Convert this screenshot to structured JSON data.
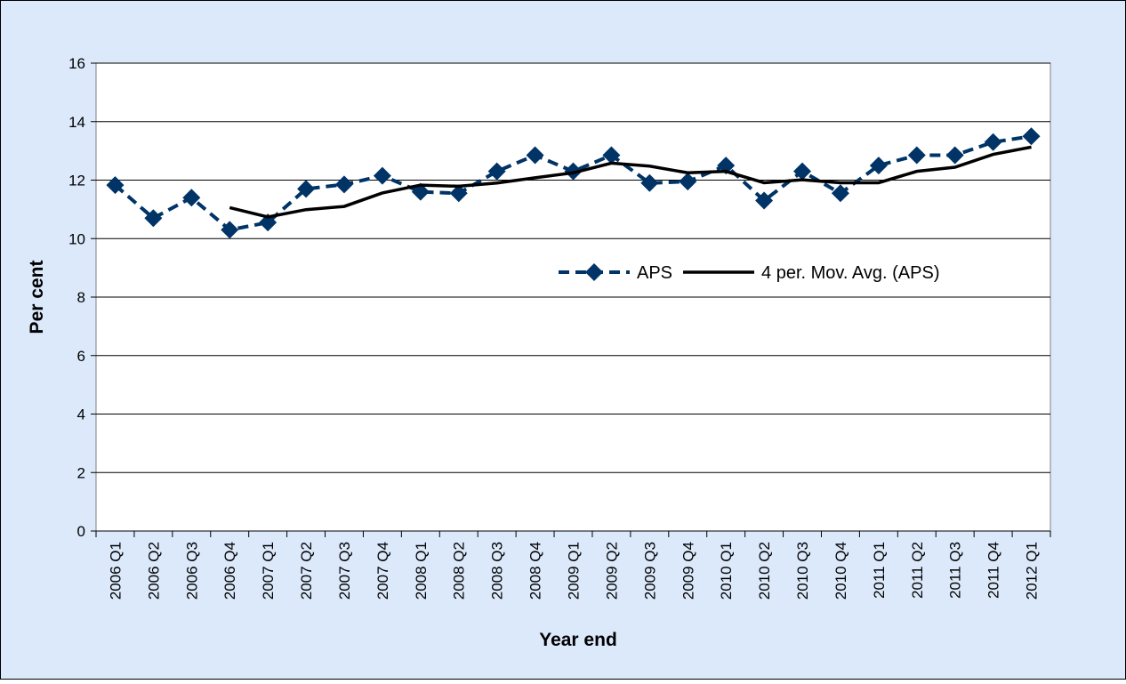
{
  "chart_data": {
    "type": "line",
    "x_label": "Year end",
    "y_label": "Per cent",
    "categories": [
      "2006 Q1",
      "2006 Q2",
      "2006 Q3",
      "2006 Q4",
      "2007 Q1",
      "2007 Q2",
      "2007 Q3",
      "2007 Q4",
      "2008 Q1",
      "2008 Q2",
      "2008 Q3",
      "2008 Q4",
      "2009 Q1",
      "2009 Q2",
      "2009 Q3",
      "2009 Q4",
      "2010 Q1",
      "2010 Q2",
      "2010 Q3",
      "2010 Q4",
      "2011 Q1",
      "2011 Q2",
      "2011 Q3",
      "2011 Q4",
      "2012 Q1"
    ],
    "series": [
      {
        "name": "APS",
        "color": "#003366",
        "dashed": true,
        "marker": "diamond",
        "values": [
          11.83,
          10.7,
          11.4,
          10.3,
          10.55,
          11.7,
          11.85,
          12.15,
          11.6,
          11.55,
          12.3,
          12.85,
          12.3,
          12.85,
          11.9,
          11.95,
          12.5,
          11.3,
          12.3,
          11.55,
          12.5,
          12.85,
          12.85,
          13.3,
          13.5
        ]
      },
      {
        "name": "4 per. Mov. Avg. (APS)",
        "color": "#000000",
        "dashed": false,
        "marker": "none",
        "values": [
          null,
          null,
          null,
          11.06,
          10.74,
          10.99,
          11.1,
          11.56,
          11.83,
          11.79,
          11.9,
          12.08,
          12.25,
          12.58,
          12.48,
          12.25,
          12.3,
          11.91,
          12.01,
          11.91,
          11.91,
          12.3,
          12.44,
          12.88,
          13.13
        ]
      }
    ],
    "ylim": [
      0,
      16
    ],
    "yticks": [
      0,
      2,
      4,
      6,
      8,
      10,
      12,
      14,
      16
    ],
    "grid": true
  }
}
